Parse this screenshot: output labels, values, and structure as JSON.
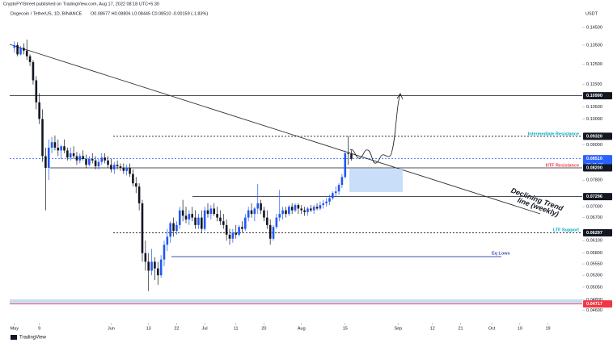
{
  "header": {
    "publisher": "CryptoFYIStreet published on TradingView.com, Aug 17, 2022 08:18 UTC+5:30",
    "symbol": "Dogecoin / TetherUS, 1D, BINANCE",
    "ohlc": "O0.08677 H0.08806 L0.08445 C0.08510 -0.00159 (-1.83%)",
    "currency": "USDT"
  },
  "footer": {
    "brand": "TradingView"
  },
  "chart_data": {
    "type": "candlestick",
    "log": true,
    "up_color": "#2157f3",
    "down_color": "#131722",
    "xlim": [
      -1.5,
      182
    ],
    "ylim": [
      0.0437,
      0.1569
    ],
    "xticks": [
      {
        "value": 0,
        "label": "May"
      },
      {
        "value": 8,
        "label": "9"
      },
      {
        "value": 31,
        "label": "Jun"
      },
      {
        "value": 43,
        "label": "13"
      },
      {
        "value": 52,
        "label": "22"
      },
      {
        "value": 61,
        "label": "Jul"
      },
      {
        "value": 71,
        "label": "11"
      },
      {
        "value": 80,
        "label": "20"
      },
      {
        "value": 92,
        "label": "Aug"
      },
      {
        "value": 106,
        "label": "15"
      },
      {
        "value": 123,
        "label": "Sep"
      },
      {
        "value": 134,
        "label": "12"
      },
      {
        "value": 143,
        "label": "21"
      },
      {
        "value": 153,
        "label": "Oct"
      },
      {
        "value": 162,
        "label": "10"
      },
      {
        "value": 171,
        "label": "19"
      }
    ],
    "yticks": [
      {
        "value": 0.145,
        "label": "0.14500"
      },
      {
        "value": 0.135,
        "label": "0.13500"
      },
      {
        "value": 0.125,
        "label": "0.12500"
      },
      {
        "value": 0.115,
        "label": "0.11500"
      },
      {
        "value": 0.105,
        "label": "0.10500"
      },
      {
        "value": 0.1,
        "label": "0.10000"
      },
      {
        "value": 0.09,
        "label": "0.09000"
      },
      {
        "value": 0.078,
        "label": "0.07800"
      },
      {
        "value": 0.07,
        "label": "0.07000"
      },
      {
        "value": 0.067,
        "label": "0.06700"
      },
      {
        "value": 0.061,
        "label": "0.06100"
      },
      {
        "value": 0.058,
        "label": "0.05800"
      },
      {
        "value": 0.0555,
        "label": "0.05550"
      },
      {
        "value": 0.053,
        "label": "0.05300"
      },
      {
        "value": 0.0505,
        "label": "0.05050"
      },
      {
        "value": 0.048,
        "label": "0.04800"
      },
      {
        "value": 0.046,
        "label": "0.04600"
      }
    ],
    "levels": [
      {
        "value": 0.1099,
        "label": "0.10990",
        "color": "#131722",
        "dashed": false
      },
      {
        "value": 0.0932,
        "label": "0.09320",
        "color": "#131722",
        "dashed": true
      },
      {
        "value": 0.0851,
        "label": "0.08510",
        "color": "#2962ff",
        "dashed": true,
        "countdown": "21:11:36"
      },
      {
        "value": 0.082,
        "label": "0.08200",
        "color": "#131722",
        "dashed": false
      },
      {
        "value": 0.07296,
        "label": "0.07296",
        "color": "#131722",
        "dashed": false
      },
      {
        "value": 0.06297,
        "label": "0.06297",
        "color": "#131722",
        "dashed": true
      },
      {
        "value": 0.04717,
        "label": "0.04717",
        "color": "#f23645",
        "dashed": false
      }
    ],
    "annotations": [
      "Intermediate Resistance",
      "HTF Resistance",
      "LTF Support",
      "Eq Lows",
      "Declining Trend",
      "line (weekly)"
    ],
    "candles": [
      [
        0.1335,
        0.137,
        0.131,
        0.135
      ],
      [
        0.135,
        0.1365,
        0.129,
        0.13
      ],
      [
        0.13,
        0.1345,
        0.1295,
        0.1335
      ],
      [
        0.1335,
        0.136,
        0.13,
        0.132
      ],
      [
        0.132,
        0.138,
        0.127,
        0.129
      ],
      [
        0.129,
        0.13,
        0.124,
        0.126
      ],
      [
        0.126,
        0.127,
        0.115,
        0.117
      ],
      [
        0.117,
        0.119,
        0.104,
        0.107
      ],
      [
        0.107,
        0.111,
        0.098,
        0.1
      ],
      [
        0.1,
        0.104,
        0.084,
        0.086
      ],
      [
        0.086,
        0.089,
        0.069,
        0.082
      ],
      [
        0.082,
        0.092,
        0.078,
        0.089
      ],
      [
        0.089,
        0.093,
        0.087,
        0.091
      ],
      [
        0.091,
        0.0935,
        0.088,
        0.089
      ],
      [
        0.089,
        0.092,
        0.086,
        0.088
      ],
      [
        0.088,
        0.09,
        0.085,
        0.0895
      ],
      [
        0.0895,
        0.092,
        0.087,
        0.088
      ],
      [
        0.088,
        0.089,
        0.0845,
        0.0855
      ],
      [
        0.0855,
        0.089,
        0.0845,
        0.087
      ],
      [
        0.087,
        0.0895,
        0.085,
        0.086
      ],
      [
        0.086,
        0.0875,
        0.083,
        0.0845
      ],
      [
        0.0845,
        0.087,
        0.0835,
        0.086
      ],
      [
        0.086,
        0.088,
        0.0845,
        0.085
      ],
      [
        0.085,
        0.0865,
        0.082,
        0.083
      ],
      [
        0.083,
        0.086,
        0.0825,
        0.085
      ],
      [
        0.085,
        0.087,
        0.0835,
        0.0845
      ],
      [
        0.0845,
        0.086,
        0.0815,
        0.0825
      ],
      [
        0.0825,
        0.085,
        0.0815,
        0.084
      ],
      [
        0.084,
        0.087,
        0.083,
        0.0855
      ],
      [
        0.0855,
        0.087,
        0.0835,
        0.0845
      ],
      [
        0.0845,
        0.086,
        0.082,
        0.083
      ],
      [
        0.083,
        0.085,
        0.0805,
        0.0815
      ],
      [
        0.0815,
        0.084,
        0.08,
        0.083
      ],
      [
        0.083,
        0.0845,
        0.0815,
        0.0825
      ],
      [
        0.0825,
        0.0835,
        0.081,
        0.082
      ],
      [
        0.082,
        0.0835,
        0.08,
        0.081
      ],
      [
        0.081,
        0.083,
        0.0795,
        0.082
      ],
      [
        0.082,
        0.0835,
        0.079,
        0.08
      ],
      [
        0.08,
        0.0815,
        0.076,
        0.077
      ],
      [
        0.077,
        0.079,
        0.074,
        0.076
      ],
      [
        0.076,
        0.077,
        0.069,
        0.071
      ],
      [
        0.071,
        0.072,
        0.056,
        0.058
      ],
      [
        0.058,
        0.061,
        0.054,
        0.056
      ],
      [
        0.056,
        0.058,
        0.0497,
        0.054
      ],
      [
        0.054,
        0.059,
        0.053,
        0.056
      ],
      [
        0.056,
        0.057,
        0.052,
        0.0545
      ],
      [
        0.0545,
        0.056,
        0.051,
        0.053
      ],
      [
        0.053,
        0.0575,
        0.0525,
        0.0565
      ],
      [
        0.0565,
        0.061,
        0.055,
        0.06
      ],
      [
        0.06,
        0.064,
        0.0585,
        0.062
      ],
      [
        0.062,
        0.066,
        0.0605,
        0.0655
      ],
      [
        0.0655,
        0.067,
        0.062,
        0.0635
      ],
      [
        0.0635,
        0.066,
        0.0625,
        0.065
      ],
      [
        0.065,
        0.07,
        0.064,
        0.069
      ],
      [
        0.069,
        0.072,
        0.066,
        0.0675
      ],
      [
        0.0675,
        0.07,
        0.0655,
        0.0665
      ],
      [
        0.0665,
        0.069,
        0.065,
        0.068
      ],
      [
        0.068,
        0.07,
        0.066,
        0.067
      ],
      [
        0.067,
        0.069,
        0.064,
        0.065
      ],
      [
        0.065,
        0.068,
        0.064,
        0.067
      ],
      [
        0.067,
        0.069,
        0.063,
        0.064
      ],
      [
        0.064,
        0.07,
        0.0635,
        0.069
      ],
      [
        0.069,
        0.071,
        0.067,
        0.068
      ],
      [
        0.068,
        0.0705,
        0.0665,
        0.0695
      ],
      [
        0.0695,
        0.071,
        0.0675,
        0.068
      ],
      [
        0.068,
        0.07,
        0.066,
        0.067
      ],
      [
        0.067,
        0.069,
        0.065,
        0.066
      ],
      [
        0.066,
        0.068,
        0.064,
        0.065
      ],
      [
        0.065,
        0.0665,
        0.061,
        0.0625
      ],
      [
        0.0625,
        0.064,
        0.06,
        0.0615
      ],
      [
        0.0615,
        0.064,
        0.0605,
        0.063
      ],
      [
        0.063,
        0.065,
        0.0615,
        0.0625
      ],
      [
        0.0625,
        0.065,
        0.062,
        0.0645
      ],
      [
        0.0645,
        0.066,
        0.063,
        0.064
      ],
      [
        0.064,
        0.068,
        0.0635,
        0.067
      ],
      [
        0.067,
        0.07,
        0.066,
        0.069
      ],
      [
        0.069,
        0.071,
        0.067,
        0.068
      ],
      [
        0.068,
        0.07,
        0.066,
        0.0695
      ],
      [
        0.0695,
        0.0768,
        0.068,
        0.071
      ],
      [
        0.071,
        0.072,
        0.068,
        0.069
      ],
      [
        0.069,
        0.07,
        0.066,
        0.067
      ],
      [
        0.067,
        0.069,
        0.064,
        0.065
      ],
      [
        0.065,
        0.0665,
        0.06,
        0.0615
      ],
      [
        0.0615,
        0.065,
        0.061,
        0.0645
      ],
      [
        0.0645,
        0.068,
        0.064,
        0.067
      ],
      [
        0.067,
        0.075,
        0.066,
        0.068
      ],
      [
        0.068,
        0.07,
        0.0665,
        0.069
      ],
      [
        0.069,
        0.07,
        0.067,
        0.068
      ],
      [
        0.068,
        0.0705,
        0.0675,
        0.07
      ],
      [
        0.07,
        0.071,
        0.068,
        0.069
      ],
      [
        0.069,
        0.071,
        0.0685,
        0.0705
      ],
      [
        0.0705,
        0.071,
        0.068,
        0.0695
      ],
      [
        0.0695,
        0.0705,
        0.068,
        0.069
      ],
      [
        0.069,
        0.07,
        0.0675,
        0.0685
      ],
      [
        0.0685,
        0.07,
        0.0675,
        0.0695
      ],
      [
        0.0695,
        0.0705,
        0.0685,
        0.069
      ],
      [
        0.069,
        0.0705,
        0.068,
        0.07
      ],
      [
        0.07,
        0.071,
        0.069,
        0.0695
      ],
      [
        0.0695,
        0.0715,
        0.069,
        0.0705
      ],
      [
        0.0705,
        0.072,
        0.0695,
        0.071
      ],
      [
        0.071,
        0.0725,
        0.07,
        0.0715
      ],
      [
        0.0715,
        0.0735,
        0.0705,
        0.0725
      ],
      [
        0.0725,
        0.0745,
        0.072,
        0.074
      ],
      [
        0.074,
        0.076,
        0.073,
        0.0745
      ],
      [
        0.0745,
        0.077,
        0.0735,
        0.0765
      ],
      [
        0.0765,
        0.08,
        0.0755,
        0.079
      ],
      [
        0.079,
        0.088,
        0.0785,
        0.087
      ],
      [
        0.087,
        0.0932,
        0.083,
        0.08677
      ],
      [
        0.08677,
        0.08806,
        0.08445,
        0.0851
      ]
    ]
  }
}
